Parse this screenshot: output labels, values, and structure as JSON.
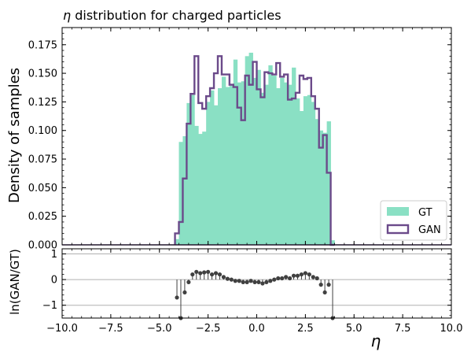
{
  "chart_data": [
    {
      "type": "bar",
      "title_var": "η",
      "title_rest": " distribution for charged particles",
      "ylabel": "Density of samples",
      "xlabel": "",
      "xlim": [
        -10,
        10
      ],
      "ylim": [
        0,
        0.19
      ],
      "yticks": [
        "0.000",
        "0.025",
        "0.050",
        "0.075",
        "0.100",
        "0.125",
        "0.150",
        "0.175"
      ],
      "ytick_values": [
        0,
        0.025,
        0.05,
        0.075,
        0.1,
        0.125,
        0.15,
        0.175
      ],
      "bin_width": 0.2,
      "bin_start": -4.2,
      "colors": {
        "gt": "#8ae0c4",
        "gan": "#6b4a8a"
      },
      "legend_position": "lower-right",
      "series": [
        {
          "name": "GT",
          "style": "filled",
          "values": [
            0.005,
            0.09,
            0.095,
            0.124,
            0.131,
            0.104,
            0.097,
            0.099,
            0.125,
            0.135,
            0.122,
            0.137,
            0.147,
            0.138,
            0.139,
            0.162,
            0.142,
            0.143,
            0.165,
            0.168,
            0.146,
            0.153,
            0.133,
            0.14,
            0.157,
            0.148,
            0.137,
            0.146,
            0.142,
            0.14,
            0.155,
            0.128,
            0.117,
            0.13,
            0.131,
            0.125,
            0.11,
            0.1,
            0.098,
            0.108,
            0.004
          ]
        },
        {
          "name": "GAN",
          "style": "step",
          "values": [
            0.01,
            0.02,
            0.058,
            0.106,
            0.132,
            0.165,
            0.124,
            0.119,
            0.13,
            0.137,
            0.15,
            0.165,
            0.149,
            0.149,
            0.14,
            0.138,
            0.12,
            0.109,
            0.148,
            0.14,
            0.16,
            0.136,
            0.129,
            0.151,
            0.15,
            0.149,
            0.159,
            0.147,
            0.149,
            0.127,
            0.128,
            0.133,
            0.148,
            0.145,
            0.146,
            0.13,
            0.119,
            0.085,
            0.096,
            0.063,
            0.0
          ]
        }
      ]
    },
    {
      "type": "scatter",
      "ylabel": "ln(GAN/GT)",
      "xlabel": "η",
      "xlim": [
        -10,
        10
      ],
      "ylim": [
        -1.5,
        1.2
      ],
      "xticks": [
        "−10.0",
        "−7.5",
        "−5.0",
        "−2.5",
        "0.0",
        "2.5",
        "5.0",
        "7.5",
        "10.0"
      ],
      "xtick_values": [
        -10,
        -7.5,
        -5,
        -2.5,
        0,
        2.5,
        5,
        7.5,
        10
      ],
      "yticks": [
        "−1",
        "0",
        "1"
      ],
      "ytick_values": [
        -1,
        0,
        1
      ],
      "gridlines": [
        -1,
        0,
        1
      ],
      "color": "#404040",
      "x": [
        -4.1,
        -3.9,
        -3.7,
        -3.5,
        -3.3,
        -3.1,
        -2.9,
        -2.7,
        -2.5,
        -2.3,
        -2.1,
        -1.9,
        -1.7,
        -1.5,
        -1.3,
        -1.1,
        -0.9,
        -0.7,
        -0.5,
        -0.3,
        -0.1,
        0.1,
        0.3,
        0.5,
        0.7,
        0.9,
        1.1,
        1.3,
        1.5,
        1.7,
        1.9,
        2.1,
        2.3,
        2.5,
        2.7,
        2.9,
        3.1,
        3.3,
        3.5,
        3.7,
        3.9
      ],
      "y": [
        -0.7,
        -1.5,
        -0.5,
        -0.1,
        0.2,
        0.3,
        0.25,
        0.28,
        0.3,
        0.2,
        0.25,
        0.2,
        0.1,
        0.03,
        0.0,
        -0.05,
        -0.05,
        -0.1,
        -0.1,
        -0.05,
        -0.1,
        -0.1,
        -0.15,
        -0.1,
        -0.05,
        0.0,
        0.05,
        0.05,
        0.1,
        0.05,
        0.15,
        0.15,
        0.2,
        0.25,
        0.2,
        0.1,
        0.05,
        -0.2,
        -0.5,
        -0.2,
        -1.5
      ]
    }
  ]
}
